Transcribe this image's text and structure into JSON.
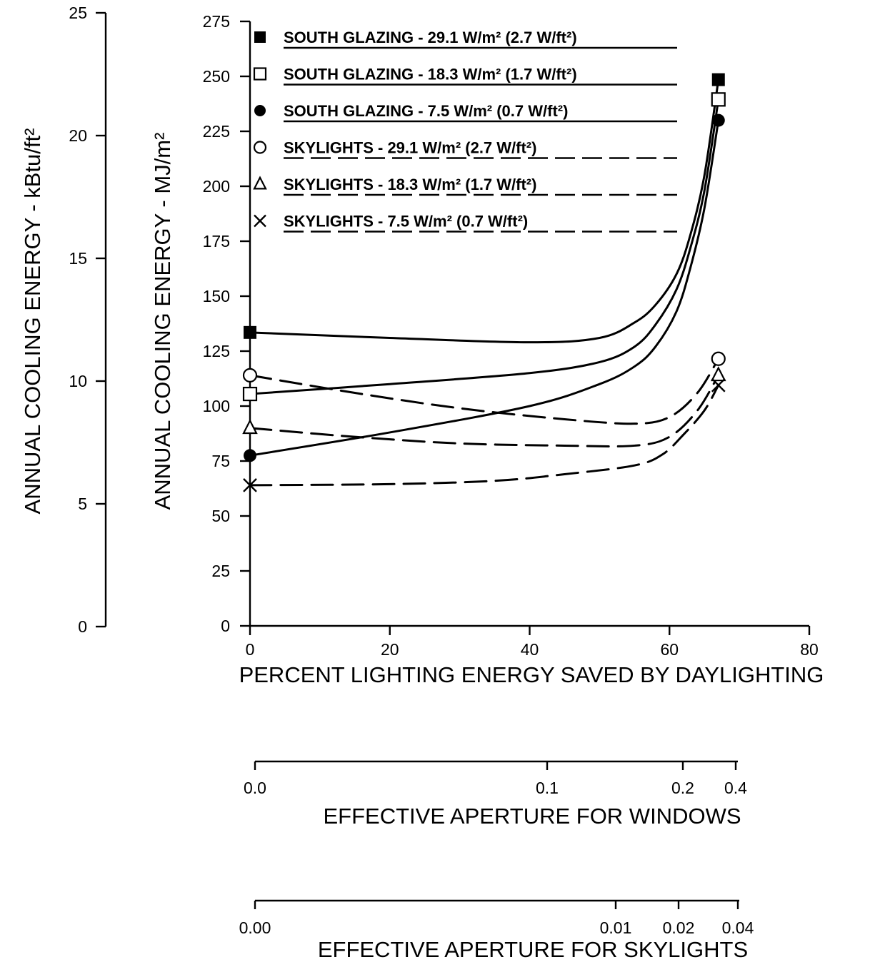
{
  "chart_data": {
    "type": "line",
    "x_axis": {
      "label": "PERCENT LIGHTING ENERGY SAVED BY DAYLIGHTING",
      "range": [
        0,
        80
      ],
      "ticks": [
        "0",
        "20",
        "40",
        "60",
        "80"
      ]
    },
    "y_axis_primary": {
      "label": "ANNUAL COOLING ENERGY - MJ/m²",
      "range": [
        0,
        275
      ],
      "ticks": [
        "0",
        "25",
        "50",
        "75",
        "100",
        "125",
        "150",
        "175",
        "200",
        "225",
        "250",
        "275"
      ]
    },
    "y_axis_secondary": {
      "label": "ANNUAL COOLING ENERGY - kBtu/ft²",
      "range": [
        0,
        25
      ],
      "ticks": [
        "0",
        "5",
        "10",
        "15",
        "20",
        "25"
      ]
    },
    "aperture_windows": {
      "label": "EFFECTIVE APERTURE FOR WINDOWS",
      "ticks": [
        "0.0",
        "0.1",
        "0.2",
        "0.4"
      ]
    },
    "aperture_skylights": {
      "label": "EFFECTIVE APERTURE FOR SKYLIGHTS",
      "ticks": [
        "0.00",
        "0.01",
        "0.02",
        "0.04"
      ]
    },
    "grid": false,
    "legend_position": "top",
    "series": [
      {
        "name": "SOUTH GLAZING - 29.1 W/m² (2.7 W/ft²)",
        "marker": "filled-square",
        "line": "solid",
        "points": [
          [
            0,
            133.5
          ],
          [
            67,
            248.5
          ]
        ],
        "curve": [
          [
            0,
            133.5
          ],
          [
            20,
            131
          ],
          [
            40,
            129
          ],
          [
            50,
            131
          ],
          [
            55,
            138
          ],
          [
            58,
            146
          ],
          [
            61,
            160
          ],
          [
            63,
            178
          ],
          [
            65,
            205
          ],
          [
            67,
            248.5
          ]
        ]
      },
      {
        "name": "SOUTH GLAZING - 18.3 W/m² (1.7 W/ft²)",
        "marker": "open-square",
        "line": "solid",
        "points": [
          [
            0,
            105.5
          ],
          [
            67,
            239.5
          ]
        ],
        "curve": [
          [
            0,
            105.5
          ],
          [
            20,
            110
          ],
          [
            40,
            115
          ],
          [
            50,
            120
          ],
          [
            55,
            127
          ],
          [
            58,
            137
          ],
          [
            61,
            153
          ],
          [
            63,
            172
          ],
          [
            65,
            198
          ],
          [
            67,
            239.5
          ]
        ]
      },
      {
        "name": "SOUTH GLAZING - 7.5 W/m² (0.7 W/ft²)",
        "marker": "filled-circle",
        "line": "solid",
        "points": [
          [
            0,
            77.5
          ],
          [
            67,
            230
          ]
        ],
        "curve": [
          [
            0,
            77.5
          ],
          [
            20,
            88
          ],
          [
            40,
            100
          ],
          [
            50,
            110
          ],
          [
            55,
            118
          ],
          [
            58,
            127
          ],
          [
            61,
            143
          ],
          [
            63,
            163
          ],
          [
            65,
            190
          ],
          [
            67,
            230
          ]
        ]
      },
      {
        "name": "SKYLIGHTS - 29.1 W/m² (2.7 W/ft²)",
        "marker": "open-circle",
        "line": "dashed",
        "points": [
          [
            0,
            114
          ],
          [
            67,
            121.5
          ]
        ],
        "curve": [
          [
            0,
            114
          ],
          [
            15,
            106
          ],
          [
            30,
            99
          ],
          [
            45,
            94
          ],
          [
            55,
            92
          ],
          [
            60,
            95
          ],
          [
            64,
            106
          ],
          [
            67,
            121.5
          ]
        ]
      },
      {
        "name": "SKYLIGHTS - 18.3 W/m² (1.7 W/ft²)",
        "marker": "open-triangle",
        "line": "dashed",
        "points": [
          [
            0,
            90
          ],
          [
            67,
            114
          ]
        ],
        "curve": [
          [
            0,
            90
          ],
          [
            15,
            86
          ],
          [
            30,
            83
          ],
          [
            45,
            82
          ],
          [
            55,
            82
          ],
          [
            60,
            86
          ],
          [
            64,
            98
          ],
          [
            67,
            114
          ]
        ]
      },
      {
        "name": "SKYLIGHTS - 7.5 W/m² (0.7 W/ft²)",
        "marker": "x",
        "line": "dashed",
        "points": [
          [
            0,
            64
          ],
          [
            67,
            109.5
          ]
        ],
        "curve": [
          [
            0,
            64
          ],
          [
            20,
            64.5
          ],
          [
            35,
            66
          ],
          [
            45,
            69
          ],
          [
            55,
            73
          ],
          [
            59,
            78
          ],
          [
            62,
            87
          ],
          [
            65,
            98
          ],
          [
            67,
            109.5
          ]
        ]
      }
    ]
  }
}
